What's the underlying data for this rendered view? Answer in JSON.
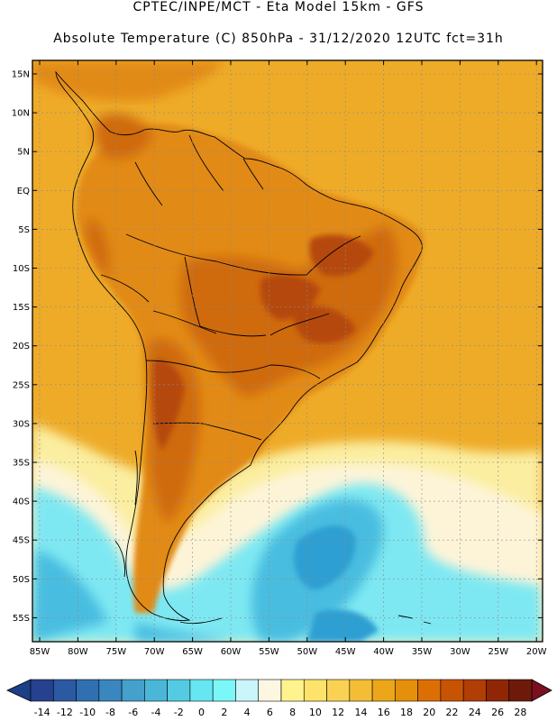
{
  "header": {
    "line1": "CPTEC/INPE/MCT  -   Eta Model 15km - GFS",
    "line2": "Absolute Temperature (C) 850hPa - 31/12/2020 12UTC fct=31h"
  },
  "axes": {
    "lat_labels": [
      "15N",
      "10N",
      "5N",
      "EQ",
      "5S",
      "10S",
      "15S",
      "20S",
      "25S",
      "30S",
      "35S",
      "40S",
      "45S",
      "50S",
      "55S"
    ],
    "lon_labels": [
      "85W",
      "80W",
      "75W",
      "70W",
      "65W",
      "60W",
      "55W",
      "50W",
      "45W",
      "40W",
      "35W",
      "30W",
      "25W",
      "20W"
    ]
  },
  "colorbar": {
    "labels": [
      "-14",
      "-12",
      "-10",
      "-8",
      "-6",
      "-4",
      "-2",
      "0",
      "2",
      "4",
      "6",
      "8",
      "10",
      "12",
      "14",
      "16",
      "18",
      "20",
      "22",
      "24",
      "26",
      "28"
    ],
    "colors": [
      "#25418f",
      "#2b5aa3",
      "#3070b2",
      "#3a86bf",
      "#45a0cc",
      "#4ab7d8",
      "#55cbe3",
      "#66e6f0",
      "#7cf7f7",
      "#c9f5fb",
      "#fdf7e2",
      "#fff38e",
      "#fde36a",
      "#fad253",
      "#f3bd36",
      "#eca619",
      "#e4900a",
      "#dc6f04",
      "#c85403",
      "#b03e05",
      "#8f2707",
      "#6e1a0a"
    ],
    "under_color": "#1c3f86",
    "over_color": "#7a0f20"
  },
  "palette": {
    "background_field": "#eeab28",
    "warm": "#e28a18",
    "hot": "#cf6a10",
    "hottest": "#b5480f",
    "pale": "#fbeea0",
    "cream": "#fdf4d8",
    "cyan": "#7ee8f2",
    "blue": "#48bde0",
    "deep_blue": "#2f9fd2"
  }
}
